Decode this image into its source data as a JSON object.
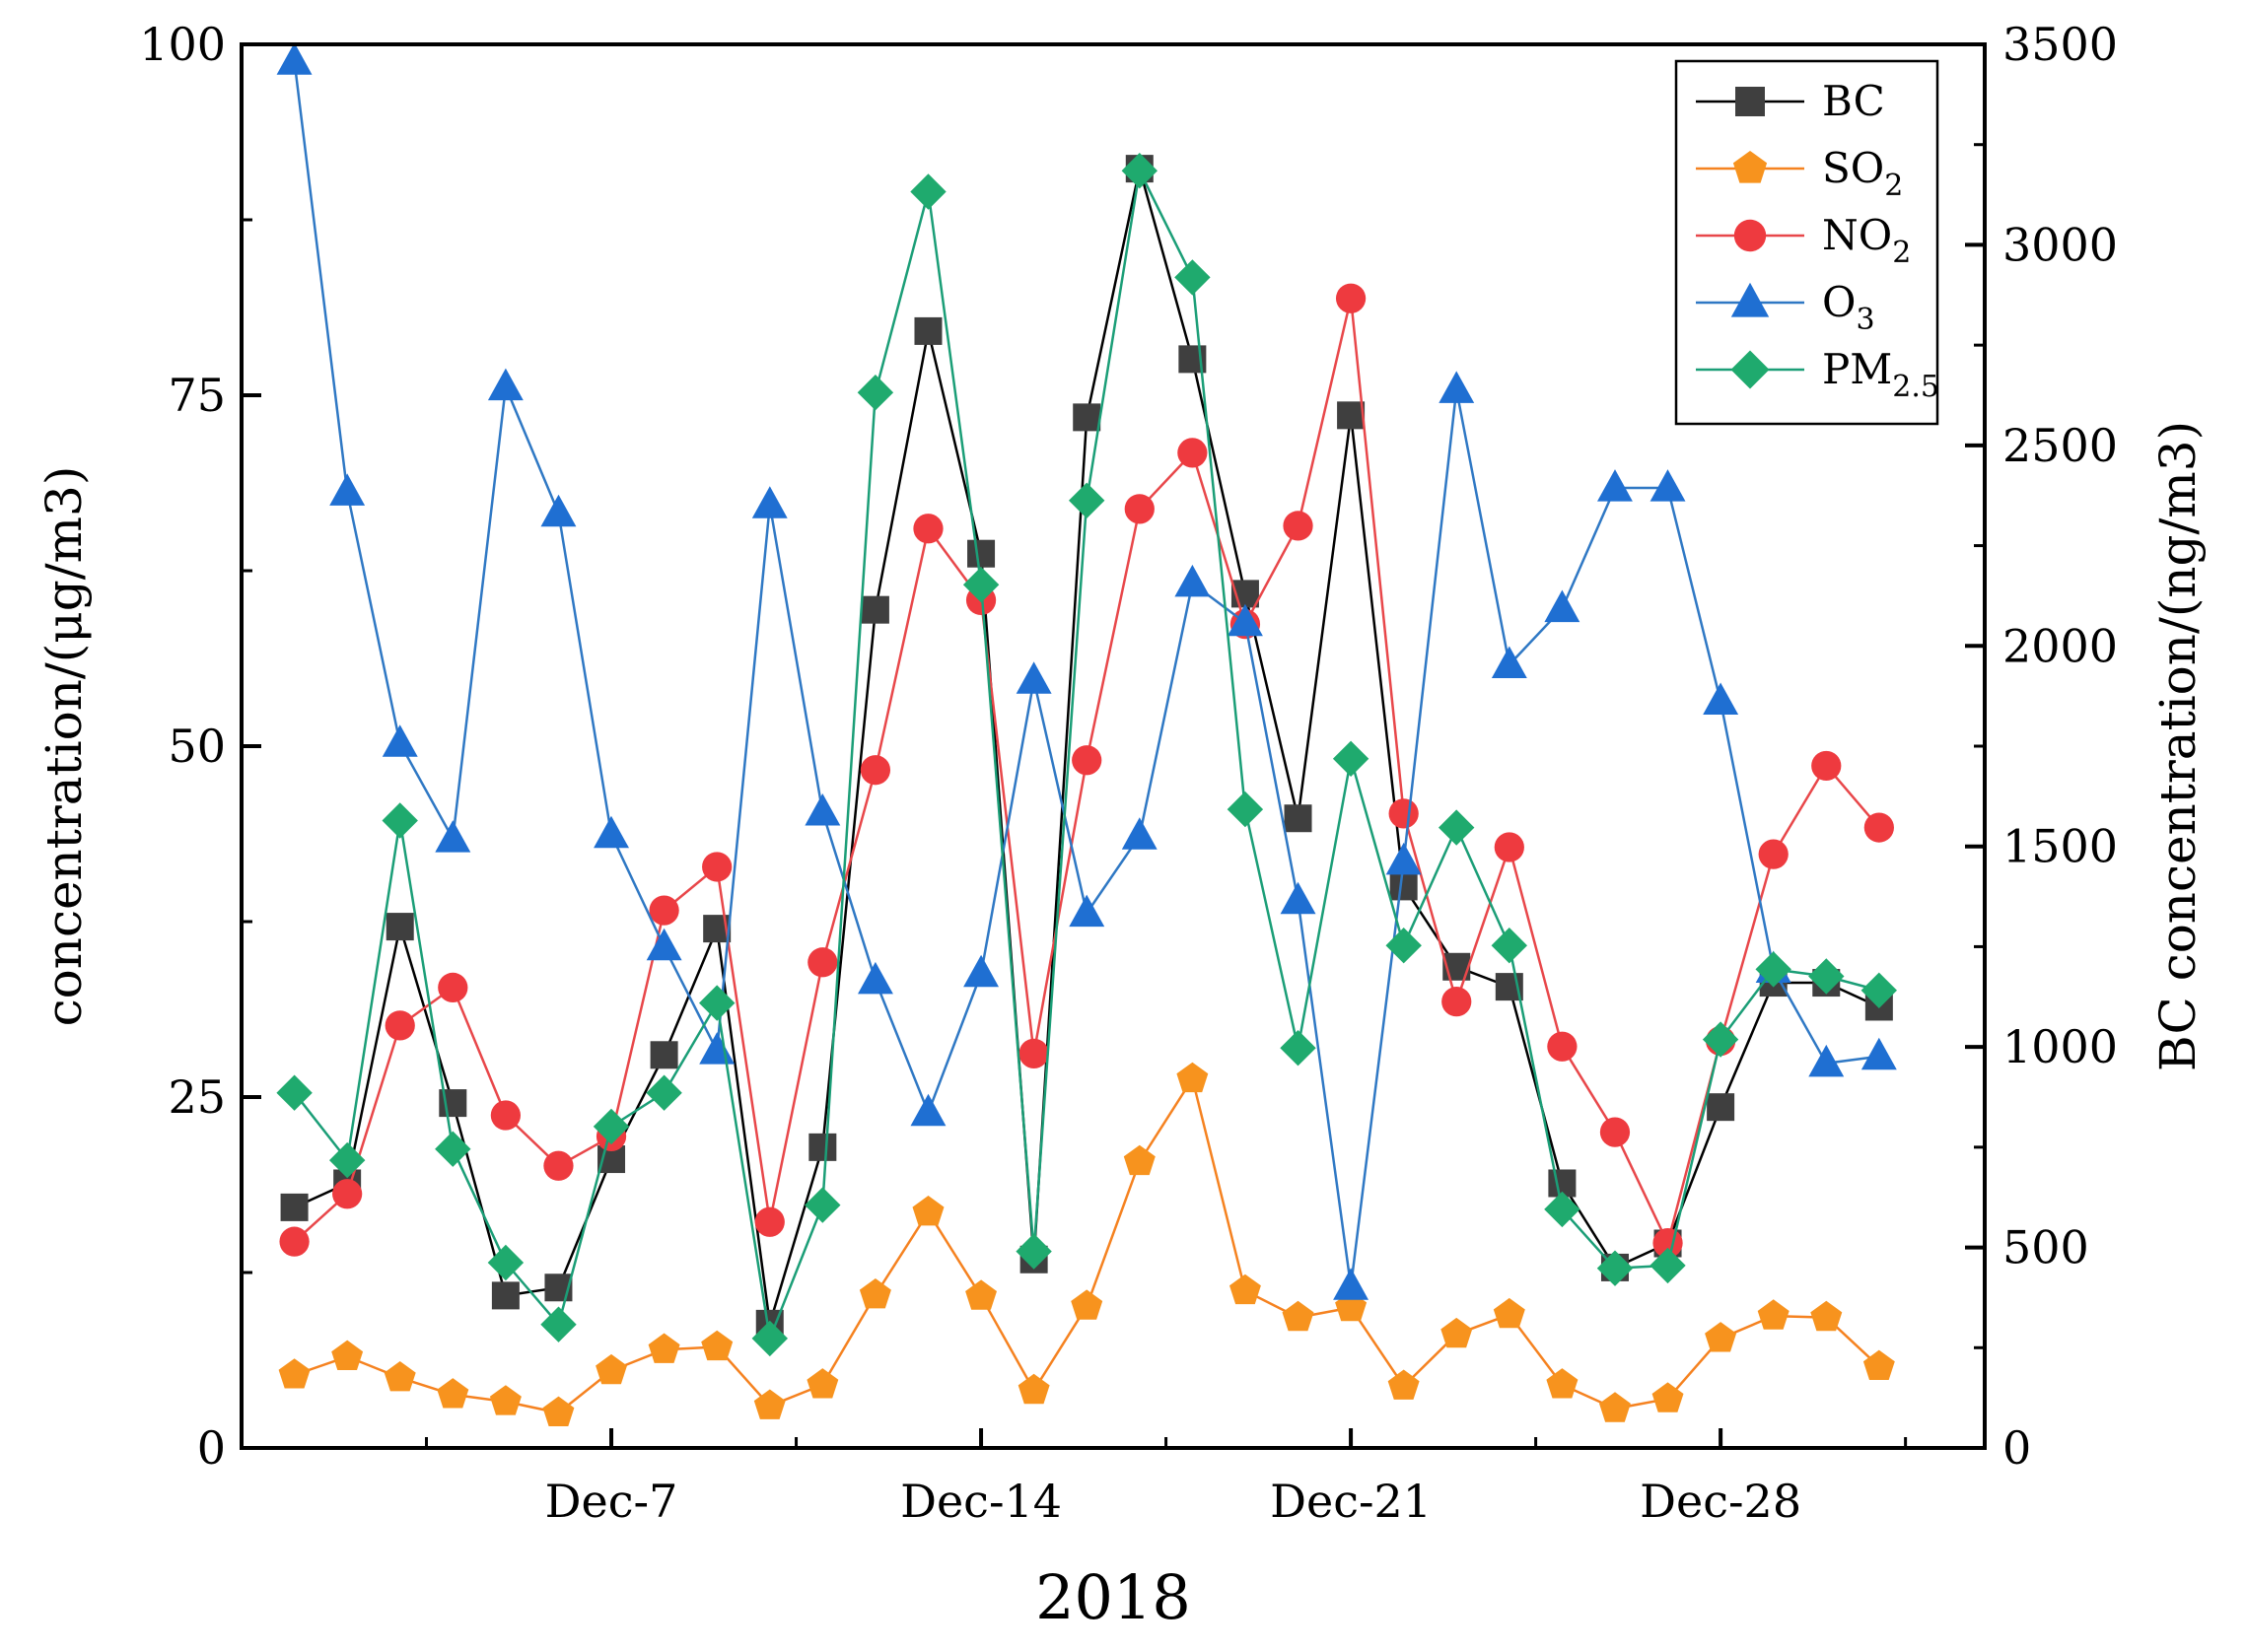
{
  "chart_data": {
    "type": "line",
    "title": "",
    "xlabel": "2018",
    "ylabel_left": "concentration/(μg/m3)",
    "ylabel_right": "BC concentration/(ng/m3)",
    "ylim_left": [
      0,
      100
    ],
    "ylim_right": [
      0,
      3500
    ],
    "yticks_left": [
      "0",
      "25",
      "50",
      "75",
      "100"
    ],
    "yticks_right": [
      "0",
      "500",
      "1000",
      "1500",
      "2000",
      "2500",
      "3000",
      "3500"
    ],
    "xlim_days": [
      0,
      33
    ],
    "xticks": [
      {
        "day": 7,
        "label": "Dec-7"
      },
      {
        "day": 14,
        "label": "Dec-14"
      },
      {
        "day": 21,
        "label": "Dec-21"
      },
      {
        "day": 28,
        "label": "Dec-28"
      }
    ],
    "days": [
      1,
      2,
      3,
      4,
      5,
      6,
      7,
      8,
      9,
      10,
      11,
      12,
      13,
      14,
      15,
      16,
      17,
      18,
      19,
      20,
      21,
      22,
      23,
      24,
      25,
      26,
      27,
      28,
      29,
      30,
      31
    ],
    "legend": {
      "position": "top-right"
    },
    "series": [
      {
        "name": "BC",
        "label_main": "BC",
        "label_sub": "",
        "axis": "right",
        "color": "#000000",
        "marker_color": "#3f3f3f",
        "marker": "square",
        "values": [
          600,
          660,
          1300,
          860,
          380,
          400,
          720,
          980,
          1295,
          310,
          750,
          2090,
          2785,
          2230,
          470,
          2570,
          3190,
          2715,
          2130,
          1570,
          2575,
          1400,
          1200,
          1150,
          660,
          450,
          510,
          850,
          1160,
          1160,
          1100
        ]
      },
      {
        "name": "SO2",
        "label_main": "SO",
        "label_sub": "2",
        "axis": "left",
        "color": "#f58220",
        "marker_color": "#f7931e",
        "marker": "pentagon",
        "values": [
          5.2,
          6.5,
          5.0,
          3.8,
          3.3,
          2.5,
          5.5,
          7.0,
          7.2,
          3.0,
          4.5,
          10.9,
          16.8,
          10.8,
          4.1,
          10.1,
          20.4,
          26.3,
          11.2,
          9.3,
          10.0,
          4.4,
          8.1,
          9.5,
          4.5,
          2.8,
          3.5,
          7.8,
          9.4,
          9.3,
          5.8
        ]
      },
      {
        "name": "NO2",
        "label_main": "NO",
        "label_sub": "2",
        "axis": "left",
        "color": "#e8474a",
        "marker_color": "#ee3a3f",
        "marker": "circle",
        "values": [
          14.7,
          18.1,
          30.1,
          32.8,
          23.7,
          20.1,
          22.2,
          38.3,
          41.4,
          16.1,
          34.6,
          48.3,
          65.5,
          60.4,
          28.1,
          49.0,
          66.9,
          70.9,
          58.7,
          65.7,
          81.9,
          45.2,
          31.8,
          42.8,
          28.6,
          22.5,
          14.6,
          29.0,
          42.3,
          48.6,
          44.2
        ]
      },
      {
        "name": "O3",
        "label_main": "O",
        "label_sub": "3",
        "axis": "left",
        "color": "#2f78c4",
        "marker_color": "#1f6fd2",
        "marker": "triangle",
        "values": [
          98.8,
          68.1,
          50.2,
          43.4,
          75.6,
          66.6,
          43.7,
          35.7,
          28.3,
          67.2,
          45.3,
          33.3,
          23.9,
          33.8,
          54.7,
          38.1,
          43.6,
          61.6,
          58.8,
          39.0,
          11.5,
          41.8,
          75.4,
          55.8,
          59.8,
          68.4,
          68.4,
          53.2,
          34.1,
          27.4,
          27.9
        ]
      },
      {
        "name": "PM2.5",
        "label_main": "PM",
        "label_sub": "2.5",
        "axis": "left",
        "color": "#1b9e77",
        "marker_color": "#1faa6e",
        "marker": "diamond",
        "values": [
          25.3,
          20.5,
          44.7,
          21.3,
          13.2,
          8.8,
          22.9,
          25.3,
          31.7,
          7.8,
          17.3,
          75.2,
          89.5,
          61.5,
          14.0,
          67.5,
          91.0,
          83.4,
          45.5,
          28.5,
          49.1,
          35.8,
          44.2,
          35.8,
          17.0,
          12.8,
          13.0,
          29.1,
          34.1,
          33.6,
          32.6
        ]
      }
    ]
  }
}
